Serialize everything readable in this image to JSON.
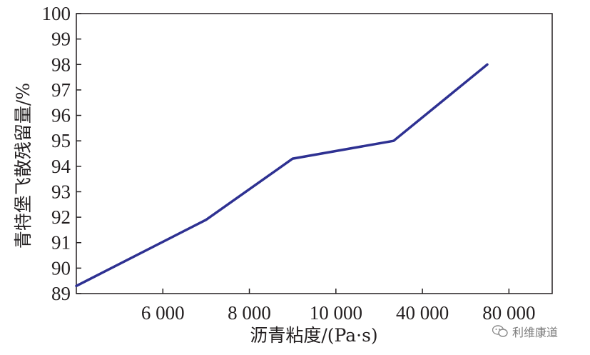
{
  "chart_data": {
    "type": "line",
    "xlabel": "沥青粘度/(Pa·s)",
    "ylabel": "青特堡飞散残留量/%",
    "categories": [
      "6 000",
      "8 000",
      "10 000",
      "40 000",
      "80 000"
    ],
    "ylim": [
      89,
      100
    ],
    "yticks": [
      89,
      90,
      91,
      92,
      93,
      94,
      95,
      96,
      97,
      98,
      99,
      100
    ],
    "grid": false,
    "series": [
      {
        "color": "#2e3192",
        "x": [
          5000,
          7000,
          9000,
          30000,
          70000
        ],
        "values": [
          89.3,
          91.9,
          94.3,
          95.0,
          98.0
        ]
      }
    ]
  },
  "watermark": {
    "text": "利维康道",
    "icon": "wechat-icon"
  }
}
